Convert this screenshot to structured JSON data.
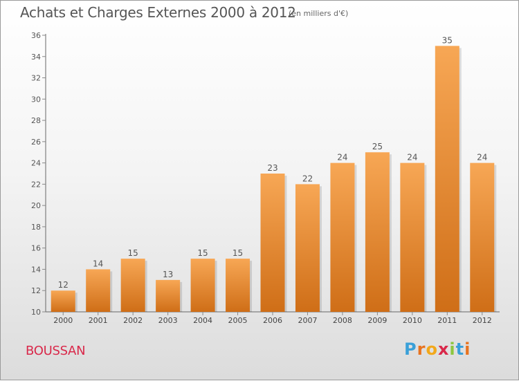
{
  "title": "Achats et Charges Externes 2000 à 2012",
  "subtitle": "(en milliers d'€)",
  "place_name": "BOUSSAN",
  "logo": {
    "letters": [
      "P",
      "r",
      "o",
      "x",
      "i",
      "t",
      "i"
    ],
    "colors": [
      "#3aa0d8",
      "#e8731f",
      "#f2a81b",
      "#d9284a",
      "#8cc63f",
      "#3aa0d8",
      "#e8731f"
    ]
  },
  "colors": {
    "bar_light": "#f7a755",
    "bar_dark": "#cf6e17",
    "axis": "#666666",
    "grid_tick": "#888888"
  },
  "chart_data": {
    "type": "bar",
    "title": "Achats et Charges Externes 2000 à 2012",
    "subtitle": "(en milliers d'€)",
    "categories": [
      "2000",
      "2001",
      "2002",
      "2003",
      "2004",
      "2005",
      "2006",
      "2007",
      "2008",
      "2009",
      "2010",
      "2011",
      "2012"
    ],
    "values": [
      12,
      14,
      15,
      13,
      15,
      15,
      23,
      22,
      24,
      25,
      24,
      35,
      24
    ],
    "data_labels": [
      "12",
      "14",
      "15",
      "13",
      "15",
      "15",
      "23",
      "22",
      "24",
      "25",
      "24",
      "35",
      "24"
    ],
    "ylim": [
      10,
      36
    ],
    "yticks": [
      "10",
      "12",
      "14",
      "16",
      "18",
      "20",
      "22",
      "24",
      "26",
      "28",
      "30",
      "32",
      "34",
      "36"
    ],
    "grid": false,
    "legend": "none"
  }
}
